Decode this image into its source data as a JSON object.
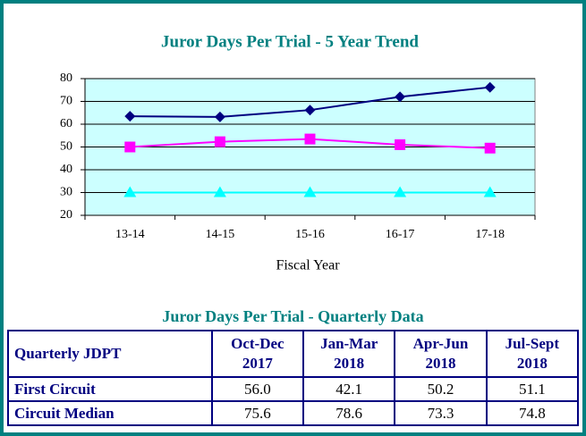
{
  "chart_data": {
    "type": "line",
    "title": "Juror Days Per Trial - 5 Year Trend",
    "x_label": "Fiscal Year",
    "categories": [
      "13-14",
      "14-15",
      "15-16",
      "16-17",
      "17-18"
    ],
    "series": [
      {
        "color": "#000080",
        "marker": "diamond",
        "values": [
          63.5,
          63.2,
          66.2,
          72,
          76.2
        ]
      },
      {
        "color": "#ff00ff",
        "marker": "square",
        "values": [
          50,
          52.3,
          53.5,
          51,
          49.5
        ]
      },
      {
        "color": "#00ffff",
        "marker": "triangle",
        "values": [
          30,
          30,
          30,
          30,
          30
        ]
      }
    ],
    "ylim": [
      20,
      80
    ],
    "yticks": [
      20,
      30,
      40,
      50,
      60,
      70,
      80
    ],
    "grid": true,
    "plot_background": "#ccffff"
  },
  "table": {
    "title": "Juror Days Per Trial - Quarterly Data",
    "header": [
      "Quarterly JDPT",
      "Oct-Dec 2017",
      "Jan-Mar 2018",
      "Apr-Jun 2018",
      "Jul-Sept 2018"
    ],
    "rows": [
      [
        "First Circuit",
        "56.0",
        "42.1",
        "50.2",
        "51.1"
      ],
      [
        "Circuit Median",
        "75.6",
        "78.6",
        "73.3",
        "74.8"
      ]
    ]
  }
}
